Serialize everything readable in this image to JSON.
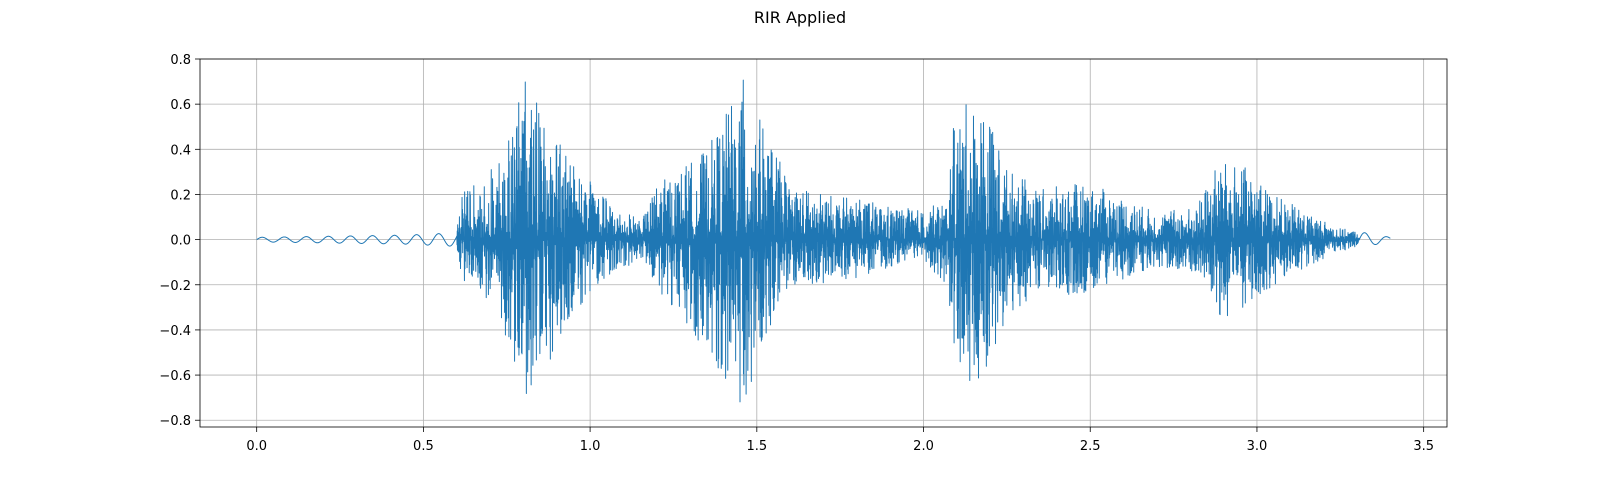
{
  "chart_data": {
    "type": "line",
    "title": "RIR Applied",
    "xlabel": "",
    "ylabel": "",
    "xlim": [
      -0.17,
      3.57
    ],
    "ylim": [
      -0.83,
      0.8
    ],
    "x_ticks": [
      0.0,
      0.5,
      1.0,
      1.5,
      2.0,
      2.5,
      3.0,
      3.5
    ],
    "x_tick_labels": [
      "0.0",
      "0.5",
      "1.0",
      "1.5",
      "2.0",
      "2.5",
      "3.0",
      "3.5"
    ],
    "y_ticks": [
      -0.8,
      -0.6,
      -0.4,
      -0.2,
      0.0,
      0.2,
      0.4,
      0.6,
      0.8
    ],
    "y_tick_labels": [
      "−0.8",
      "−0.6",
      "−0.4",
      "−0.2",
      "0.0",
      "0.2",
      "0.4",
      "0.6",
      "0.8"
    ],
    "grid": true,
    "legend": "none",
    "line_color": "#1f77b4",
    "duration": 3.4,
    "amplitude_envelope": {
      "x": [
        0.0,
        0.45,
        0.6,
        0.61,
        0.7,
        0.76,
        0.8,
        0.86,
        0.95,
        1.02,
        1.1,
        1.16,
        1.2,
        1.26,
        1.35,
        1.42,
        1.46,
        1.52,
        1.6,
        1.7,
        1.8,
        1.9,
        2.0,
        2.07,
        2.09,
        2.12,
        2.18,
        2.25,
        2.35,
        2.45,
        2.55,
        2.7,
        2.82,
        2.88,
        2.95,
        3.05,
        3.15,
        3.25,
        3.4
      ],
      "upper": [
        0.01,
        0.02,
        0.03,
        0.2,
        0.3,
        0.55,
        0.72,
        0.55,
        0.35,
        0.22,
        0.12,
        0.1,
        0.25,
        0.3,
        0.4,
        0.6,
        0.72,
        0.5,
        0.25,
        0.2,
        0.18,
        0.15,
        0.13,
        0.18,
        0.5,
        0.6,
        0.62,
        0.32,
        0.22,
        0.25,
        0.22,
        0.12,
        0.15,
        0.34,
        0.34,
        0.2,
        0.12,
        0.05,
        0.01
      ],
      "lower": [
        -0.01,
        -0.02,
        -0.03,
        -0.18,
        -0.3,
        -0.5,
        -0.73,
        -0.6,
        -0.35,
        -0.2,
        -0.12,
        -0.1,
        -0.22,
        -0.32,
        -0.5,
        -0.65,
        -0.76,
        -0.45,
        -0.22,
        -0.2,
        -0.17,
        -0.12,
        -0.1,
        -0.2,
        -0.5,
        -0.66,
        -0.6,
        -0.35,
        -0.22,
        -0.25,
        -0.2,
        -0.12,
        -0.15,
        -0.38,
        -0.34,
        -0.2,
        -0.12,
        -0.05,
        -0.01
      ]
    }
  }
}
